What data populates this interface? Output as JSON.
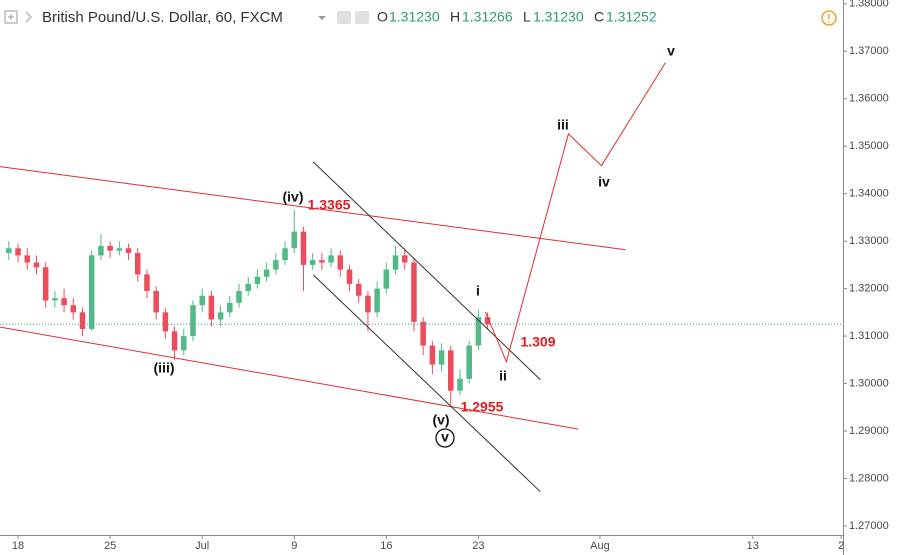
{
  "header": {
    "symbol": "British Pound/U.S. Dollar, 60, FXCM",
    "o_label": "O",
    "o": "1.31230",
    "h_label": "H",
    "h": "1.31266",
    "l_label": "L",
    "l": "1.31230",
    "c_label": "C",
    "c": "1.31252"
  },
  "chart_data": {
    "type": "candlestick",
    "up_color": "#53b987",
    "down_color": "#eb4d5c",
    "x": [
      -0.5,
      0,
      0.5,
      1,
      1.5,
      2,
      2.5,
      3,
      3.5,
      4,
      4.5,
      5,
      5.5,
      6,
      6.5,
      7,
      7.5,
      8,
      8.5,
      9,
      9.5,
      10,
      10.5,
      11,
      11.5,
      12,
      12.5,
      13,
      13.5,
      14,
      14.5,
      15,
      15.5,
      16,
      16.5,
      17,
      17.5,
      18,
      18.5,
      19,
      19.5,
      20,
      20.5,
      21,
      21.5,
      22,
      22.5,
      23,
      23.5,
      24,
      24.5,
      25,
      25.5
    ],
    "open": [
      1.3275,
      1.3285,
      1.327,
      1.3255,
      1.3245,
      1.3175,
      1.318,
      1.3165,
      1.315,
      1.3115,
      1.327,
      1.329,
      1.328,
      1.3285,
      1.3275,
      1.323,
      1.3195,
      1.315,
      1.311,
      1.307,
      1.31,
      1.3165,
      1.3185,
      1.3135,
      1.315,
      1.317,
      1.3195,
      1.321,
      1.3225,
      1.324,
      1.326,
      1.3285,
      1.332,
      1.325,
      1.326,
      1.3255,
      1.327,
      1.324,
      1.321,
      1.3185,
      1.315,
      1.32,
      1.324,
      1.327,
      1.3255,
      1.313,
      1.308,
      1.304,
      1.307,
      1.2985,
      1.301,
      1.308,
      1.314
    ],
    "high": [
      1.33,
      1.3295,
      1.3285,
      1.327,
      1.3255,
      1.3195,
      1.32,
      1.318,
      1.316,
      1.328,
      1.3315,
      1.33,
      1.33,
      1.3295,
      1.3285,
      1.324,
      1.3205,
      1.316,
      1.312,
      1.3115,
      1.3175,
      1.32,
      1.3195,
      1.3165,
      1.3185,
      1.321,
      1.3225,
      1.324,
      1.3255,
      1.3275,
      1.33,
      1.3365,
      1.333,
      1.3275,
      1.3275,
      1.3285,
      1.328,
      1.325,
      1.322,
      1.3195,
      1.3215,
      1.3255,
      1.329,
      1.3285,
      1.3265,
      1.314,
      1.309,
      1.3085,
      1.308,
      1.303,
      1.309,
      1.3155,
      1.315
    ],
    "low": [
      1.326,
      1.3255,
      1.324,
      1.323,
      1.316,
      1.316,
      1.315,
      1.3135,
      1.31,
      1.311,
      1.326,
      1.3265,
      1.327,
      1.326,
      1.3215,
      1.318,
      1.3135,
      1.3095,
      1.305,
      1.306,
      1.309,
      1.315,
      1.312,
      1.312,
      1.314,
      1.316,
      1.3185,
      1.32,
      1.3215,
      1.323,
      1.325,
      1.3275,
      1.3195,
      1.324,
      1.324,
      1.3245,
      1.3225,
      1.3195,
      1.317,
      1.311,
      1.314,
      1.319,
      1.323,
      1.324,
      1.311,
      1.306,
      1.302,
      1.3025,
      1.2955,
      1.2975,
      1.3,
      1.307,
      1.3115
    ],
    "close": [
      1.3285,
      1.327,
      1.3255,
      1.3245,
      1.3175,
      1.318,
      1.3165,
      1.315,
      1.3115,
      1.327,
      1.329,
      1.328,
      1.3285,
      1.3275,
      1.323,
      1.3195,
      1.315,
      1.311,
      1.307,
      1.31,
      1.3165,
      1.3185,
      1.3135,
      1.315,
      1.317,
      1.3195,
      1.321,
      1.3225,
      1.324,
      1.326,
      1.3285,
      1.332,
      1.325,
      1.326,
      1.3255,
      1.327,
      1.324,
      1.321,
      1.3185,
      1.315,
      1.32,
      1.324,
      1.327,
      1.3255,
      1.313,
      1.308,
      1.304,
      1.307,
      1.2985,
      1.301,
      1.308,
      1.314,
      1.3125
    ],
    "current_price": 1.3125,
    "current_price_color": "#26a69a",
    "xlim": [
      -0.98,
      44.8
    ],
    "xticks": [
      {
        "value": 0,
        "label": "18"
      },
      {
        "value": 5,
        "label": "25"
      },
      {
        "value": 10,
        "label": "Jul"
      },
      {
        "value": 15,
        "label": "9"
      },
      {
        "value": 20,
        "label": "16"
      },
      {
        "value": 25,
        "label": "23"
      },
      {
        "value": 31.6,
        "label": "Aug"
      },
      {
        "value": 39.9,
        "label": "13"
      },
      {
        "value": 44.7,
        "label": "2"
      }
    ],
    "ylim": [
      1.2681,
      1.3808
    ],
    "yticks": [
      {
        "value": 1.27,
        "label": "1.27000"
      },
      {
        "value": 1.28,
        "label": "1.28000"
      },
      {
        "value": 1.29,
        "label": "1.29000"
      },
      {
        "value": 1.3,
        "label": "1.30000"
      },
      {
        "value": 1.31,
        "label": "1.31000"
      },
      {
        "value": 1.32,
        "label": "1.32000"
      },
      {
        "value": 1.33,
        "label": "1.33000"
      },
      {
        "value": 1.34,
        "label": "1.34000"
      },
      {
        "value": 1.35,
        "label": "1.35000"
      },
      {
        "value": 1.36,
        "label": "1.36000"
      },
      {
        "value": 1.37,
        "label": "1.37000"
      },
      {
        "value": 1.38,
        "label": "1.38000"
      }
    ],
    "lines": [
      {
        "color": "#e03030",
        "x": [
          -0.98,
          32.99
        ],
        "y": [
          1.3457,
          1.3282
        ]
      },
      {
        "color": "#e03030",
        "x": [
          -0.98,
          30.43
        ],
        "y": [
          1.3119,
          1.2904
        ]
      },
      {
        "color": "#333333",
        "x": [
          16.03,
          28.37
        ],
        "y": [
          1.3467,
          1.3008
        ]
      },
      {
        "color": "#333333",
        "x": [
          16.03,
          28.37
        ],
        "y": [
          1.3229,
          1.2772
        ]
      },
      {
        "color": "#e03030",
        "x": [
          25.38,
          26.52,
          29.89,
          31.68,
          35.16
        ],
        "y": [
          1.3151,
          1.3046,
          1.3526,
          1.3459,
          1.3676
        ]
      }
    ],
    "annotations": [
      {
        "text": "(iv)",
        "color": "#111111"
      },
      {
        "text": "1.3365",
        "color": "#e02020"
      },
      {
        "text": "(iii)",
        "color": "#111111"
      },
      {
        "text": "(v)",
        "color": "#111111"
      },
      {
        "text": "v",
        "color": "#111111"
      },
      {
        "text": "1.2955",
        "color": "#e02020"
      },
      {
        "text": "i",
        "color": "#111111"
      },
      {
        "text": "ii",
        "color": "#111111"
      },
      {
        "text": "1.309",
        "color": "#e02020"
      },
      {
        "text": "iii",
        "color": "#111111"
      },
      {
        "text": "iv",
        "color": "#111111"
      },
      {
        "text": "v",
        "color": "#111111"
      }
    ]
  }
}
